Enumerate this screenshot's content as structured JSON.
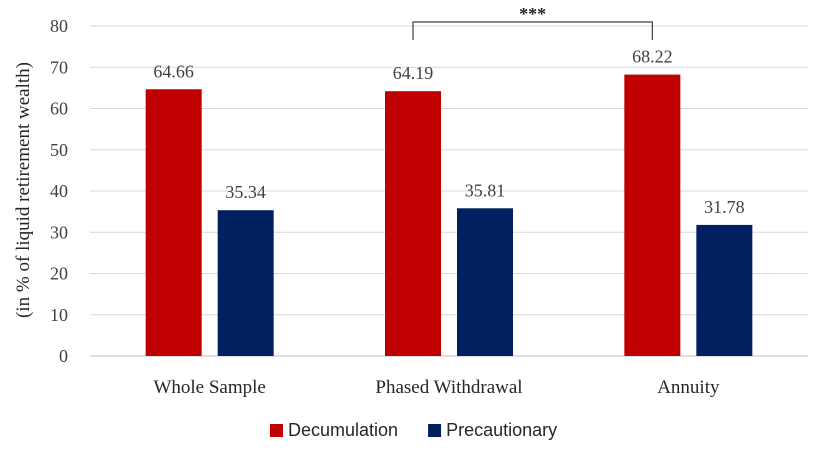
{
  "chart_data": {
    "type": "bar",
    "categories": [
      "Whole Sample",
      "Phased Withdrawal",
      "Annuity"
    ],
    "series": [
      {
        "name": "Decumulation",
        "values": [
          64.66,
          64.19,
          68.22
        ],
        "color": "#C00000"
      },
      {
        "name": "Precautionary",
        "values": [
          35.34,
          35.81,
          31.78
        ],
        "color": "#002060"
      }
    ],
    "data_labels": {
      "Decumulation": [
        "64.66",
        "64.19",
        "68.22"
      ],
      "Precautionary": [
        "35.34",
        "35.81",
        "31.78"
      ]
    },
    "title": "",
    "xlabel": "",
    "ylabel": "(in % of liquid retirement wealth)",
    "ylim": [
      0,
      80
    ],
    "yticks": [
      "0",
      "10",
      "20",
      "30",
      "40",
      "50",
      "60",
      "70",
      "80"
    ],
    "grid": "horizontal",
    "legend": "bottom-center",
    "significance": {
      "label": "***",
      "from_category": "Phased Withdrawal",
      "to_category": "Annuity",
      "series": "Decumulation"
    }
  }
}
